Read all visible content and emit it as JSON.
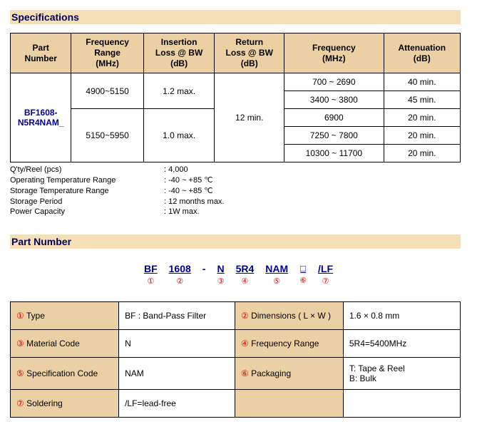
{
  "section_headers": {
    "specs": "Specifications",
    "partnum": "Part Number"
  },
  "spec_table": {
    "headers": {
      "part_number": "Part\nNumber",
      "freq_range": "Frequency\nRange\n(MHz)",
      "insertion_loss": "Insertion\nLoss @ BW\n(dB)",
      "return_loss": "Return\nLoss @ BW\n(dB)",
      "frequency": "Frequency\n(MHz)",
      "attenuation": "Attenuation\n(dB)"
    },
    "part_number": "BF1608-N5R4NAM_",
    "ranges": [
      {
        "freq": "4900~5150",
        "il": "1.2 max."
      },
      {
        "freq": "5150~5950",
        "il": "1.0 max."
      }
    ],
    "return_loss": "12 min.",
    "att_rows": [
      {
        "f": "700 ~ 2690",
        "a": "40 min."
      },
      {
        "f": "3400 ~ 3800",
        "a": "45 min."
      },
      {
        "f": "6900",
        "a": "20 min."
      },
      {
        "f": "7250 ~ 7800",
        "a": "20 min."
      },
      {
        "f": "10300 ~ 11700",
        "a": "20 min."
      }
    ]
  },
  "notes": [
    {
      "k": "Q'ty/Reel (pcs)",
      "v": ": 4,000"
    },
    {
      "k": "Operating Temperature Range",
      "v": ": -40 ~ +85 ℃"
    },
    {
      "k": "Storage Temperature Range",
      "v": ": -40 ~ +85 ℃"
    },
    {
      "k": "Storage Period",
      "v": ": 12 months max."
    },
    {
      "k": "Power Capacity",
      "v": ": 1W max."
    }
  ],
  "pn_breakdown": {
    "items": [
      {
        "code": "BF",
        "idx": "①"
      },
      {
        "code": "1608",
        "idx": "②"
      },
      {
        "code": "N",
        "idx": "③"
      },
      {
        "code": "5R4",
        "idx": "④"
      },
      {
        "code": "NAM",
        "idx": "⑤"
      },
      {
        "code": "□",
        "idx": "⑥",
        "square": true
      },
      {
        "code": "/LF",
        "idx": "⑦"
      }
    ]
  },
  "pn_table": {
    "rows": [
      {
        "li": "①",
        "ll": " Type",
        "lv": "BF : Band-Pass Filter",
        "ri": "②",
        "rl": " Dimensions ( L × W )",
        "rv": "1.6 × 0.8 mm"
      },
      {
        "li": "③",
        "ll": " Material Code",
        "lv": "N",
        "ri": "④",
        "rl": " Frequency Range",
        "rv": "5R4=5400MHz"
      },
      {
        "li": "⑤",
        "ll": " Specification Code",
        "lv": "NAM",
        "ri": "⑥",
        "rl": " Packaging",
        "rv": "T: Tape & Reel\nB: Bulk"
      },
      {
        "li": "⑦",
        "ll": " Soldering",
        "lv": "/LF=lead-free",
        "ri": "",
        "rl": "",
        "rv": ""
      }
    ]
  }
}
